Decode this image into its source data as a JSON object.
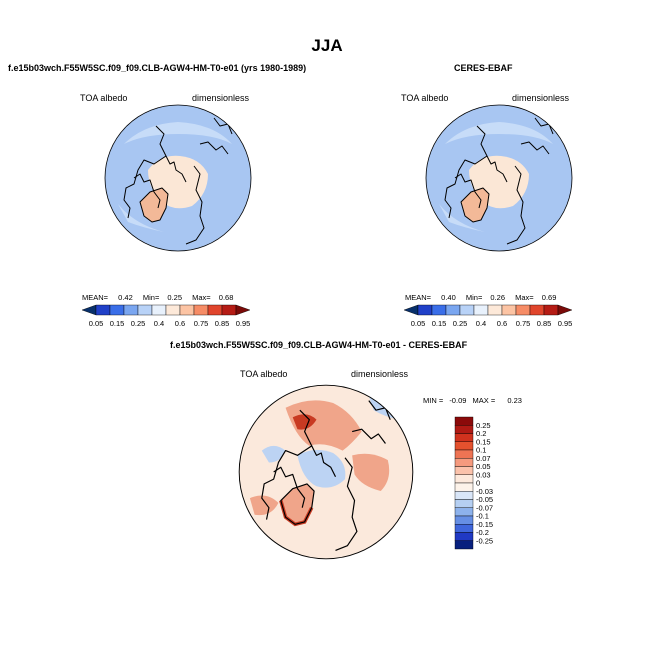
{
  "figure": {
    "title": "JJA"
  },
  "panels": [
    {
      "title": "f.e15b03wch.F55W5SC.f09_f09.CLB-AGW4-HM-T0-e01 (yrs 1980-1989)",
      "variable": "TOA albedo",
      "units": "dimensionless",
      "stats": {
        "mean_label": "MEAN=",
        "mean": "0.42",
        "min_label": "Min=",
        "min": "0.25",
        "max_label": "Max=",
        "max": "0.68"
      }
    },
    {
      "title": "CERES-EBAF",
      "variable": "TOA albedo",
      "units": "dimensionless",
      "stats": {
        "mean_label": "MEAN=",
        "mean": "0.40",
        "min_label": "Min=",
        "min": "0.26",
        "max_label": "Max=",
        "max": "0.69"
      }
    },
    {
      "title": "f.e15b03wch.F55W5SC.f09_f09.CLB-AGW4-HM-T0-e01 - CERES-EBAF",
      "variable": "TOA albedo",
      "units": "dimensionless",
      "stats": {
        "min_label": "MIN =",
        "min": "-0.09",
        "max_label": "MAX =",
        "max": "0.23"
      }
    }
  ],
  "colorbars": {
    "absolute": {
      "ticks": [
        "0.05",
        "0.15",
        "0.25",
        "0.4",
        "0.6",
        "0.75",
        "0.85",
        "0.95"
      ],
      "colors": [
        "#08306b",
        "#2040c8",
        "#3a6ee8",
        "#7aa6f0",
        "#b8d2f7",
        "#e8f1fc",
        "#fde9d9",
        "#fcc4a4",
        "#f68c66",
        "#e0452c",
        "#b51c15",
        "#7a0a08"
      ]
    },
    "difference": {
      "ticks": [
        "0.25",
        "0.2",
        "0.15",
        "0.1",
        "0.07",
        "0.05",
        "0.03",
        "0",
        "-0.03",
        "-0.05",
        "-0.07",
        "-0.1",
        "-0.15",
        "-0.2",
        "-0.25"
      ],
      "colors": [
        "#8b0a0a",
        "#b01a14",
        "#d0321e",
        "#e4512e",
        "#ee7454",
        "#f59a7e",
        "#fbc2ab",
        "#fde9dc",
        "#fdf3ea",
        "#d9e6f8",
        "#b5cff2",
        "#8db2ec",
        "#668fe4",
        "#3f66dc",
        "#2039c4",
        "#08207e"
      ]
    }
  },
  "map_colors": {
    "ocean_abs": "#a8c6f2",
    "ocean_abs_light": "#c7dcf8",
    "greenland_abs": "#f3b998",
    "arctic_abs": "#fbe7d6",
    "diff_bg": "#fbe9dc",
    "diff_neg": "#bcd3f3",
    "diff_pos": "#f0a58a",
    "diff_strong": "#c83a22"
  }
}
